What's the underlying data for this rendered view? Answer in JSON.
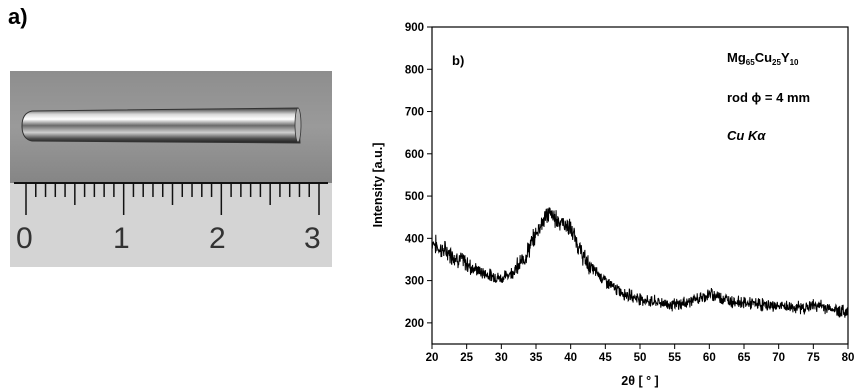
{
  "panel_a": {
    "label": "a)",
    "ruler_numbers": [
      "0",
      "1",
      "2",
      "3"
    ]
  },
  "chart_data": {
    "type": "line",
    "panel_label": "b)",
    "xlabel": "2θ [ ° ]",
    "ylabel": "Intensity [a.u.]",
    "xlim": [
      20,
      80
    ],
    "ylim": [
      150,
      900
    ],
    "xticks": [
      20,
      25,
      30,
      35,
      40,
      45,
      50,
      55,
      60,
      65,
      70,
      75,
      80
    ],
    "yticks": [
      200,
      300,
      400,
      500,
      600,
      700,
      800,
      900
    ],
    "grid": false,
    "annotations": {
      "composition": {
        "base1": "Mg",
        "sub1": "65",
        "base2": "Cu",
        "sub2": "25",
        "base3": "Y",
        "sub3": "10"
      },
      "rod": "rod ϕ = 4 mm",
      "radiation": "Cu Kα"
    },
    "series": [
      {
        "color": "#000000",
        "x": [
          20,
          21,
          22,
          23,
          24,
          25,
          26,
          27,
          28,
          29,
          30,
          31,
          32,
          33,
          34,
          35,
          35.5,
          36,
          36.5,
          37,
          37.5,
          38,
          38.5,
          39,
          39.5,
          40,
          40.5,
          41,
          42,
          43,
          44,
          45,
          46,
          47,
          48,
          49,
          50,
          51,
          52,
          53,
          54,
          55,
          56,
          57,
          58,
          59,
          60,
          61,
          62,
          63,
          64,
          65,
          66,
          67,
          68,
          69,
          70,
          71,
          72,
          73,
          74,
          75,
          76,
          77,
          78,
          79,
          80
        ],
        "y": [
          395,
          375,
          370,
          360,
          350,
          340,
          330,
          320,
          315,
          310,
          305,
          315,
          325,
          345,
          375,
          410,
          430,
          440,
          455,
          460,
          450,
          445,
          440,
          435,
          430,
          420,
          405,
          385,
          350,
          330,
          315,
          300,
          285,
          275,
          268,
          262,
          258,
          252,
          250,
          248,
          245,
          242,
          245,
          250,
          255,
          260,
          268,
          265,
          258,
          252,
          250,
          248,
          245,
          245,
          242,
          240,
          240,
          238,
          237,
          236,
          236,
          242,
          240,
          235,
          232,
          228,
          225
        ]
      }
    ]
  }
}
